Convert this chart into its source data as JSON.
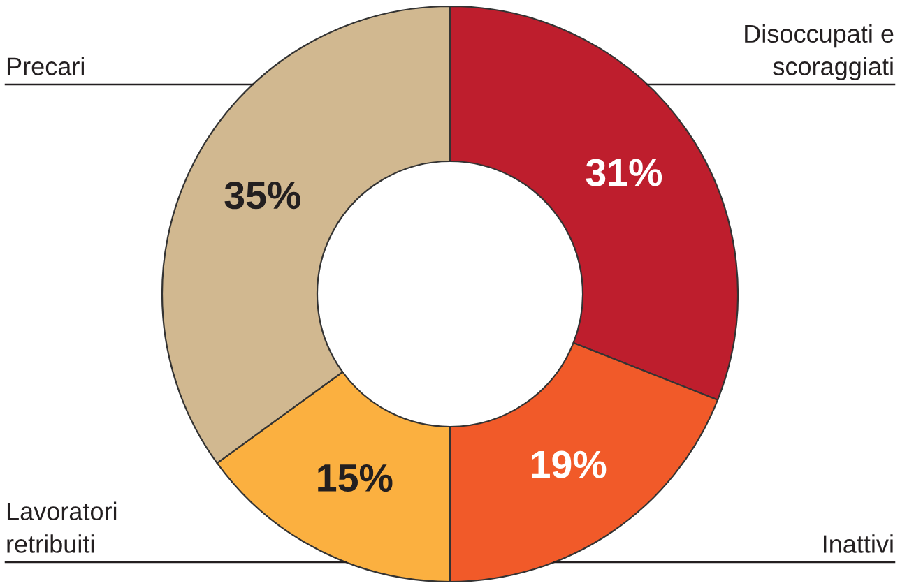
{
  "chart_data": {
    "type": "donut",
    "categories": [
      "Disoccupati e\nscoraggiati",
      "Inattivi",
      "Lavoratori\nretribuiti",
      "Precari"
    ],
    "values": [
      31,
      19,
      15,
      35
    ],
    "colors": [
      "#be1e2d",
      "#f15a29",
      "#fbb040",
      "#d1b890"
    ],
    "value_labels": [
      "31%",
      "19%",
      "15%",
      "35%"
    ]
  }
}
